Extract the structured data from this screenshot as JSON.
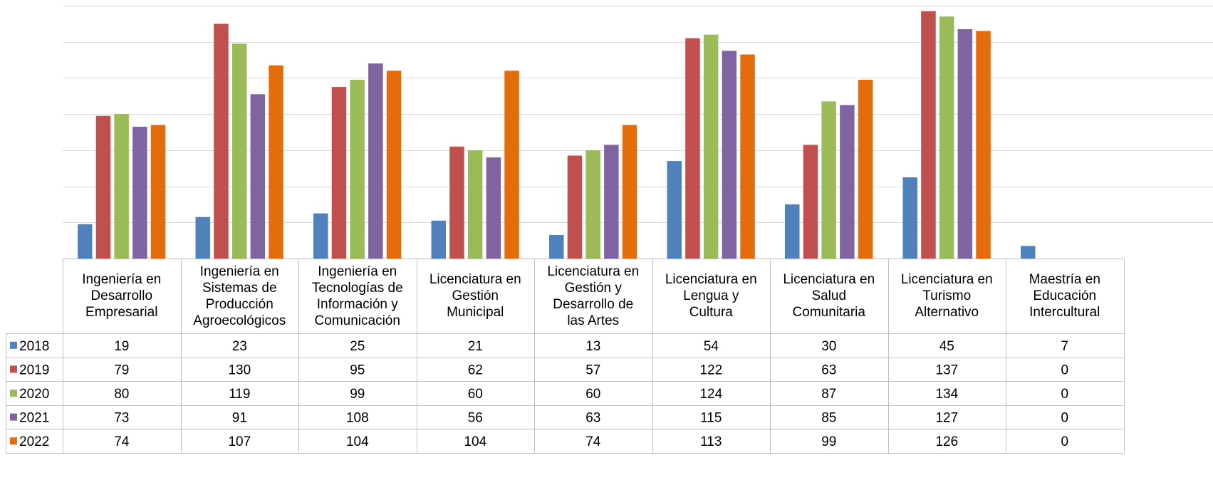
{
  "chart_data": {
    "type": "bar",
    "title": "",
    "xlabel": "",
    "ylabel": "",
    "ylim": [
      0,
      140
    ],
    "grid": true,
    "legend": "data-table",
    "categories": [
      "Ingeniería en\nDesarrollo\nEmpresarial",
      "Ingeniería en\nSistemas de\nProducción\nAgroecológicos",
      "Ingeniería en\nTecnologías de\nInformación y\nComunicación",
      "Licenciatura en\nGestión\nMunicipal",
      "Licenciatura en\nGestión y\nDesarrollo de\nlas Artes",
      "Licenciatura en\nLengua y\nCultura",
      "Licenciatura en\nSalud\nComunitaria",
      "Licenciatura en\nTurismo\nAlternativo",
      "Maestría en\nEducación\nIntercultural"
    ],
    "series": [
      {
        "name": "2018",
        "color": "#4f81bd",
        "values": [
          19,
          23,
          25,
          21,
          13,
          54,
          30,
          45,
          7
        ]
      },
      {
        "name": "2019",
        "color": "#c0504d",
        "values": [
          79,
          130,
          95,
          62,
          57,
          122,
          63,
          137,
          0
        ]
      },
      {
        "name": "2020",
        "color": "#9bbb59",
        "values": [
          80,
          119,
          99,
          60,
          60,
          124,
          87,
          134,
          0
        ]
      },
      {
        "name": "2021",
        "color": "#8064a2",
        "values": [
          73,
          91,
          108,
          56,
          63,
          115,
          85,
          127,
          0
        ]
      },
      {
        "name": "2022",
        "color": "#e46c0a",
        "values": [
          74,
          107,
          104,
          104,
          74,
          113,
          99,
          126,
          0
        ]
      }
    ]
  }
}
